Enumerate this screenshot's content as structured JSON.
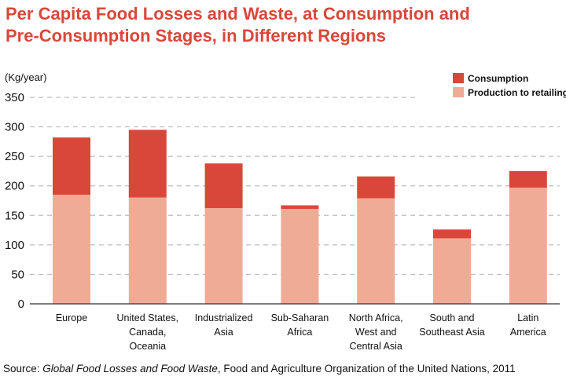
{
  "title_lines": [
    "Per Capita Food Losses and Waste, at Consumption and",
    "Pre-Consumption Stages, in Different Regions"
  ],
  "source": {
    "prefix": "Source: ",
    "work": "Global Food Losses and Food Waste",
    "suffix": ", Food and Agriculture Organization of the United Nations, 2011"
  },
  "colors": {
    "consumption": "#d9473a",
    "production": "#f0ab96",
    "title": "#d9473a",
    "grid": "#bdbdbd"
  },
  "chart_data": {
    "type": "bar",
    "stacked": true,
    "title": "Per Capita Food Losses and Waste, at Consumption and Pre-Consumption Stages, in Different Regions",
    "ylabel": "(Kg/year)",
    "ylim": [
      0,
      350
    ],
    "yticks": [
      0,
      50,
      100,
      150,
      200,
      250,
      300,
      350
    ],
    "grid": true,
    "legend_position": "top-right",
    "categories": [
      [
        "Europe"
      ],
      [
        "United States,",
        "Canada,",
        "Oceania"
      ],
      [
        "Industrialized",
        "Asia"
      ],
      [
        "Sub-Saharan",
        "Africa"
      ],
      [
        "North Africa,",
        "West and",
        "Central Asia"
      ],
      [
        "South and",
        "Southeast Asia"
      ],
      [
        "Latin",
        "America"
      ]
    ],
    "series": [
      {
        "name": "Production to retailing",
        "values": [
          185,
          180,
          162,
          161,
          179,
          111,
          197
        ]
      },
      {
        "name": "Consumption",
        "values": [
          97,
          115,
          76,
          6,
          37,
          15,
          28
        ]
      }
    ],
    "legend_order": [
      "Consumption",
      "Production to retailing"
    ]
  }
}
